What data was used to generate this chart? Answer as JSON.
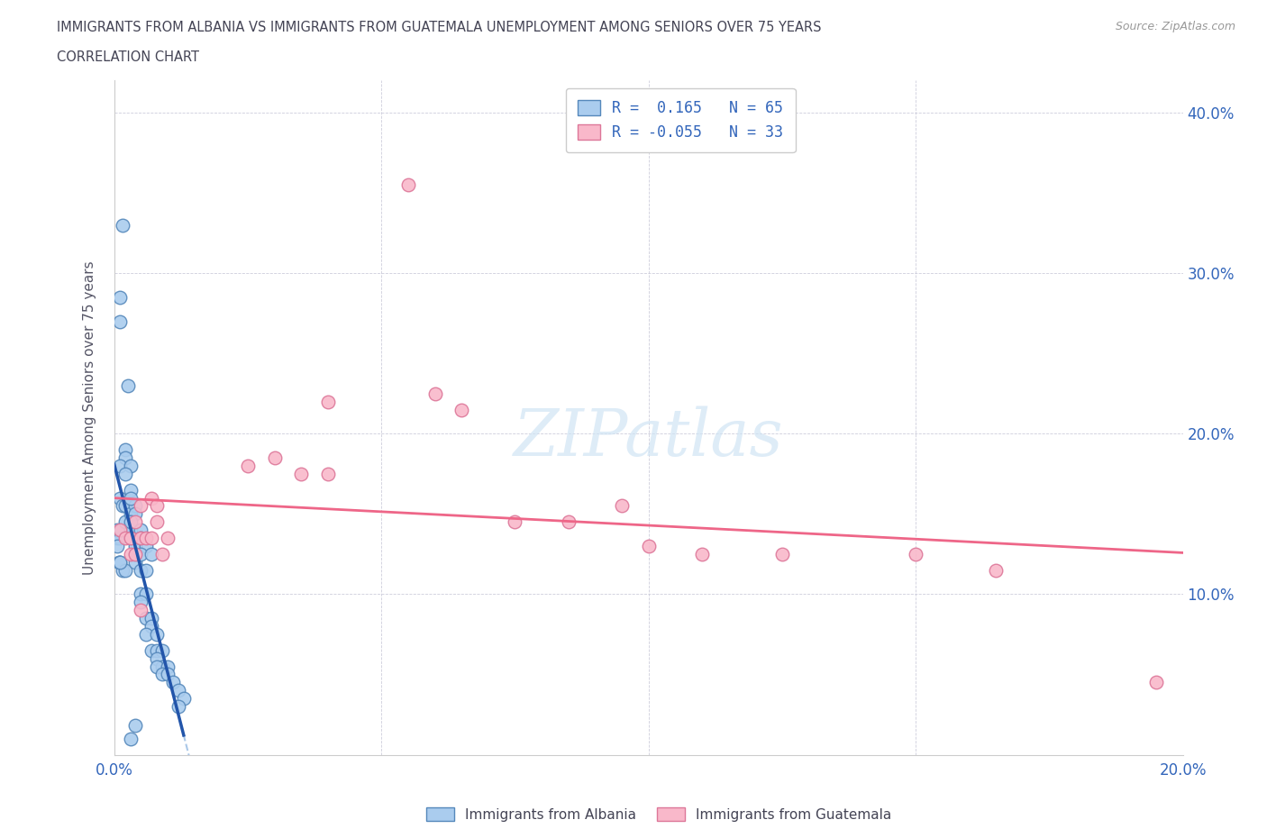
{
  "title_line1": "IMMIGRANTS FROM ALBANIA VS IMMIGRANTS FROM GUATEMALA UNEMPLOYMENT AMONG SENIORS OVER 75 YEARS",
  "title_line2": "CORRELATION CHART",
  "source_text": "Source: ZipAtlas.com",
  "ylabel": "Unemployment Among Seniors over 75 years",
  "xlim": [
    0.0,
    0.2
  ],
  "ylim": [
    0.0,
    0.42
  ],
  "xticks": [
    0.0,
    0.05,
    0.1,
    0.15,
    0.2
  ],
  "yticks": [
    0.0,
    0.1,
    0.2,
    0.3,
    0.4
  ],
  "xticklabels": [
    "0.0%",
    "",
    "",
    "",
    "20.0%"
  ],
  "yticklabels_right": [
    "",
    "10.0%",
    "20.0%",
    "30.0%",
    "40.0%"
  ],
  "albania_color": "#aaccee",
  "albania_edge": "#5588bb",
  "guatemala_color": "#f9b8ca",
  "guatemala_edge": "#dd7799",
  "trendline_albania_solid_color": "#2255aa",
  "trendline_albania_dashed_color": "#aac8e8",
  "trendline_guatemala_color": "#ee6688",
  "legend_r_albania": "R =  0.165   N = 65",
  "legend_r_guatemala": "R = -0.055   N = 33",
  "watermark_text": "ZIPatlas",
  "albania_x": [
    0.0015,
    0.001,
    0.0025,
    0.001,
    0.0005,
    0.0005,
    0.001,
    0.0005,
    0.0008,
    0.0015,
    0.001,
    0.0012,
    0.002,
    0.001,
    0.0015,
    0.002,
    0.001,
    0.003,
    0.002,
    0.002,
    0.001,
    0.003,
    0.002,
    0.003,
    0.003,
    0.002,
    0.003,
    0.004,
    0.003,
    0.004,
    0.003,
    0.003,
    0.004,
    0.004,
    0.005,
    0.005,
    0.004,
    0.005,
    0.006,
    0.005,
    0.006,
    0.005,
    0.006,
    0.007,
    0.007,
    0.006,
    0.008,
    0.007,
    0.008,
    0.009,
    0.008,
    0.009,
    0.008,
    0.01,
    0.009,
    0.01,
    0.011,
    0.012,
    0.013,
    0.012,
    0.006,
    0.005,
    0.007,
    0.003,
    0.004
  ],
  "albania_y": [
    0.33,
    0.285,
    0.23,
    0.27,
    0.135,
    0.14,
    0.135,
    0.13,
    0.12,
    0.115,
    0.12,
    0.14,
    0.115,
    0.16,
    0.155,
    0.145,
    0.12,
    0.14,
    0.19,
    0.185,
    0.18,
    0.18,
    0.175,
    0.165,
    0.155,
    0.155,
    0.15,
    0.155,
    0.16,
    0.15,
    0.145,
    0.135,
    0.13,
    0.125,
    0.14,
    0.135,
    0.12,
    0.115,
    0.115,
    0.1,
    0.1,
    0.095,
    0.085,
    0.085,
    0.08,
    0.075,
    0.075,
    0.065,
    0.065,
    0.065,
    0.06,
    0.055,
    0.055,
    0.055,
    0.05,
    0.05,
    0.045,
    0.04,
    0.035,
    0.03,
    0.13,
    0.125,
    0.125,
    0.01,
    0.018
  ],
  "guatemala_x": [
    0.001,
    0.002,
    0.003,
    0.004,
    0.003,
    0.005,
    0.004,
    0.005,
    0.005,
    0.006,
    0.007,
    0.007,
    0.008,
    0.008,
    0.009,
    0.01,
    0.025,
    0.03,
    0.035,
    0.04,
    0.04,
    0.055,
    0.06,
    0.065,
    0.075,
    0.085,
    0.095,
    0.1,
    0.11,
    0.125,
    0.15,
    0.165,
    0.195
  ],
  "guatemala_y": [
    0.14,
    0.135,
    0.135,
    0.145,
    0.125,
    0.135,
    0.125,
    0.155,
    0.09,
    0.135,
    0.135,
    0.16,
    0.145,
    0.155,
    0.125,
    0.135,
    0.18,
    0.185,
    0.175,
    0.175,
    0.22,
    0.355,
    0.225,
    0.215,
    0.145,
    0.145,
    0.155,
    0.13,
    0.125,
    0.125,
    0.125,
    0.115,
    0.045
  ]
}
